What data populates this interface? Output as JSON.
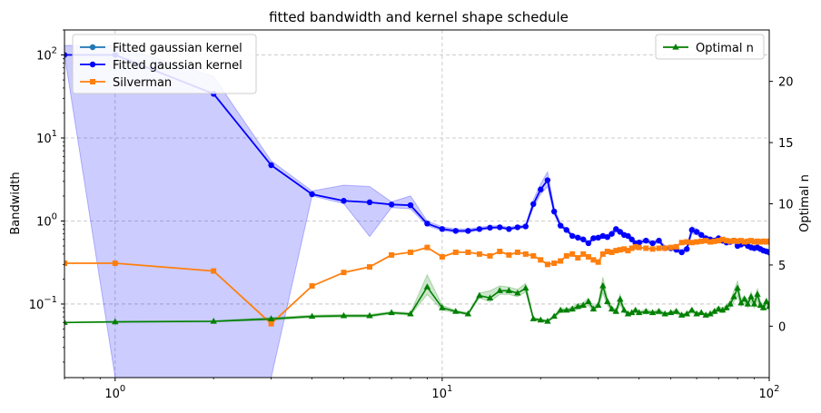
{
  "chart_data": {
    "type": "line",
    "title": "fitted bandwidth and kernel shape schedule",
    "xlabel": "",
    "ylabel": "Bandwidth",
    "y2label": "Optimal n",
    "xscale": "log",
    "yscale": "log",
    "xlim": [
      0.7,
      100
    ],
    "ylim": [
      0.013,
      200
    ],
    "y2lim": [
      -4.2,
      24.2
    ],
    "grid": true,
    "x_ticks": [
      {
        "value": 1,
        "base": "10",
        "exp": "0"
      },
      {
        "value": 10,
        "base": "10",
        "exp": "1"
      },
      {
        "value": 100,
        "base": "10",
        "exp": "2"
      }
    ],
    "y_ticks": [
      {
        "value": 0.1,
        "base": "10",
        "exp": "−1"
      },
      {
        "value": 1,
        "base": "10",
        "exp": "0"
      },
      {
        "value": 10,
        "base": "10",
        "exp": "1"
      },
      {
        "value": 100,
        "base": "10",
        "exp": "2"
      }
    ],
    "y2_ticks": [
      0,
      5,
      10,
      15,
      20
    ],
    "legend_left": {
      "placement": "upper-left",
      "entries": [
        {
          "label": "Fitted gaussian kernel",
          "color": "#1f77b4",
          "marker": "circle"
        },
        {
          "label": "Fitted gaussian kernel",
          "color": "#0000ff",
          "marker": "circle"
        },
        {
          "label": "Silverman",
          "color": "#ff7f0e",
          "marker": "square"
        }
      ]
    },
    "legend_right": {
      "placement": "upper-right",
      "entries": [
        {
          "label": "Optimal n",
          "color": "#008000",
          "marker": "triangle"
        }
      ]
    },
    "series": [
      {
        "name": "Fitted gaussian kernel",
        "axis": "left",
        "color": "#0000ff",
        "marker": "circle",
        "band_color": "#0000ff",
        "x": [
          0.7,
          1,
          2,
          3,
          4,
          5,
          6,
          7,
          8,
          9,
          10,
          11,
          12,
          13,
          14,
          15,
          16,
          17,
          18,
          19,
          20,
          21,
          22,
          23,
          24,
          25,
          26,
          27,
          28,
          29,
          30,
          31,
          32,
          33,
          34,
          35,
          36,
          37,
          38,
          39,
          40,
          42,
          44,
          46,
          48,
          50,
          52,
          54,
          56,
          58,
          60,
          62,
          64,
          66,
          68,
          70,
          72,
          74,
          76,
          78,
          80,
          82,
          84,
          86,
          88,
          90,
          92,
          94,
          96,
          98,
          100
        ],
        "y": [
          100,
          100,
          34,
          4.7,
          2.1,
          1.75,
          1.68,
          1.58,
          1.55,
          0.93,
          0.8,
          0.76,
          0.76,
          0.8,
          0.83,
          0.84,
          0.8,
          0.84,
          0.86,
          1.6,
          2.4,
          3.1,
          1.3,
          0.88,
          0.78,
          0.66,
          0.63,
          0.6,
          0.54,
          0.62,
          0.63,
          0.66,
          0.64,
          0.7,
          0.8,
          0.74,
          0.68,
          0.66,
          0.6,
          0.54,
          0.55,
          0.58,
          0.54,
          0.58,
          0.47,
          0.47,
          0.45,
          0.42,
          0.46,
          0.78,
          0.74,
          0.68,
          0.62,
          0.6,
          0.58,
          0.62,
          0.58,
          0.55,
          0.56,
          0.58,
          0.5,
          0.52,
          0.54,
          0.5,
          0.48,
          0.47,
          0.48,
          0.46,
          0.44,
          0.43,
          0.42
        ],
        "band_low": [
          100,
          0.013,
          0.013,
          0.013,
          2.0,
          1.62,
          0.65,
          1.45,
          1.4,
          0.88,
          0.76,
          0.73,
          0.73,
          0.77,
          0.8,
          0.81,
          0.78,
          0.8,
          0.83,
          1.45,
          2.1,
          2.6,
          1.2,
          0.84,
          0.75,
          0.63,
          0.6,
          0.57,
          0.52,
          0.59,
          0.6,
          0.62,
          0.61,
          0.66,
          0.74,
          0.7,
          0.65,
          0.63,
          0.57,
          0.52,
          0.52,
          0.55,
          0.51,
          0.55,
          0.45,
          0.45,
          0.43,
          0.4,
          0.43,
          0.7,
          0.68,
          0.64,
          0.59,
          0.57,
          0.55,
          0.58,
          0.55,
          0.52,
          0.53,
          0.55,
          0.47,
          0.49,
          0.51,
          0.47,
          0.46,
          0.45,
          0.45,
          0.44,
          0.42,
          0.41,
          0.38
        ],
        "band_high": [
          130,
          130,
          55,
          5.3,
          2.3,
          2.7,
          2.6,
          1.7,
          2.0,
          1.0,
          0.85,
          0.8,
          0.8,
          0.84,
          0.87,
          0.88,
          0.84,
          0.88,
          0.9,
          1.8,
          2.8,
          3.9,
          1.45,
          0.93,
          0.82,
          0.7,
          0.67,
          0.64,
          0.57,
          0.66,
          0.67,
          0.7,
          0.68,
          0.75,
          0.86,
          0.79,
          0.72,
          0.7,
          0.64,
          0.57,
          0.58,
          0.62,
          0.57,
          0.61,
          0.5,
          0.5,
          0.48,
          0.45,
          0.5,
          0.86,
          0.8,
          0.73,
          0.66,
          0.64,
          0.62,
          0.66,
          0.62,
          0.58,
          0.6,
          0.62,
          0.53,
          0.55,
          0.57,
          0.53,
          0.51,
          0.5,
          0.51,
          0.49,
          0.47,
          0.46,
          0.45
        ]
      },
      {
        "name": "Silverman",
        "axis": "left",
        "color": "#ff7f0e",
        "marker": "square",
        "x": [
          0.7,
          1,
          2,
          3,
          4,
          5,
          6,
          7,
          8,
          9,
          10,
          11,
          12,
          13,
          14,
          15,
          16,
          17,
          18,
          19,
          20,
          21,
          22,
          23,
          24,
          25,
          26,
          27,
          28,
          29,
          30,
          31,
          32,
          33,
          34,
          35,
          36,
          37,
          38,
          39,
          40,
          42,
          44,
          46,
          48,
          50,
          52,
          54,
          56,
          58,
          60,
          62,
          64,
          66,
          68,
          70,
          72,
          74,
          76,
          78,
          80,
          82,
          84,
          86,
          88,
          90,
          92,
          94,
          96,
          98,
          100
        ],
        "y": [
          0.31,
          0.31,
          0.25,
          0.058,
          0.165,
          0.24,
          0.28,
          0.39,
          0.42,
          0.48,
          0.37,
          0.42,
          0.42,
          0.4,
          0.38,
          0.43,
          0.39,
          0.42,
          0.4,
          0.38,
          0.34,
          0.3,
          0.31,
          0.33,
          0.38,
          0.4,
          0.36,
          0.4,
          0.37,
          0.34,
          0.32,
          0.4,
          0.43,
          0.42,
          0.44,
          0.45,
          0.46,
          0.44,
          0.47,
          0.49,
          0.48,
          0.47,
          0.46,
          0.47,
          0.47,
          0.48,
          0.49,
          0.55,
          0.56,
          0.55,
          0.56,
          0.57,
          0.58,
          0.56,
          0.57,
          0.58,
          0.6,
          0.58,
          0.57,
          0.58,
          0.57,
          0.58,
          0.56,
          0.57,
          0.58,
          0.56,
          0.57,
          0.56,
          0.57,
          0.56,
          0.57
        ]
      },
      {
        "name": "Optimal n",
        "axis": "right",
        "color": "#008000",
        "marker": "triangle",
        "band_color": "#008000",
        "x": [
          0.7,
          1,
          2,
          3,
          4,
          5,
          6,
          7,
          8,
          9,
          10,
          11,
          12,
          13,
          14,
          15,
          16,
          17,
          18,
          19,
          20,
          21,
          22,
          23,
          24,
          25,
          26,
          27,
          28,
          29,
          30,
          31,
          32,
          33,
          34,
          35,
          36,
          37,
          38,
          39,
          40,
          42,
          44,
          46,
          48,
          50,
          52,
          54,
          56,
          58,
          60,
          62,
          64,
          66,
          68,
          70,
          72,
          74,
          76,
          78,
          80,
          82,
          84,
          86,
          88,
          90,
          92,
          94,
          96,
          98,
          100
        ],
        "y": [
          0.3,
          0.35,
          0.4,
          0.6,
          0.8,
          0.85,
          0.85,
          1.1,
          1.0,
          3.2,
          1.5,
          1.2,
          1.0,
          2.5,
          2.3,
          2.9,
          2.9,
          2.7,
          3.1,
          0.6,
          0.5,
          0.4,
          0.8,
          1.3,
          1.3,
          1.4,
          1.6,
          1.7,
          2.0,
          1.4,
          1.7,
          3.3,
          2.0,
          1.4,
          1.2,
          2.2,
          1.3,
          1.0,
          1.1,
          1.3,
          1.1,
          1.2,
          1.1,
          1.2,
          1.0,
          1.1,
          1.2,
          0.9,
          1.0,
          1.3,
          1.0,
          1.1,
          0.9,
          1.0,
          1.2,
          1.4,
          1.3,
          1.5,
          1.8,
          2.4,
          3.1,
          1.9,
          2.2,
          1.8,
          2.4,
          1.8,
          2.6,
          1.7,
          1.5,
          2.0,
          1.6
        ],
        "band_low": [
          0.3,
          0.3,
          0.35,
          0.5,
          0.7,
          0.75,
          0.75,
          1.0,
          0.9,
          2.6,
          1.3,
          1.1,
          0.9,
          2.3,
          2.0,
          2.6,
          2.6,
          2.4,
          2.8,
          0.5,
          0.4,
          0.35,
          0.7,
          1.1,
          1.2,
          1.2,
          1.4,
          1.5,
          1.7,
          1.2,
          1.5,
          2.7,
          1.7,
          1.2,
          1.0,
          1.8,
          1.1,
          0.9,
          1.0,
          1.1,
          1.0,
          1.0,
          1.0,
          1.0,
          0.9,
          1.0,
          1.0,
          0.8,
          0.9,
          1.1,
          0.9,
          1.0,
          0.8,
          0.9,
          1.0,
          1.2,
          1.1,
          1.3,
          1.5,
          2.0,
          2.5,
          1.6,
          1.9,
          1.5,
          2.0,
          1.5,
          2.1,
          1.4,
          1.3,
          1.7,
          1.3
        ],
        "band_high": [
          0.3,
          0.4,
          0.45,
          0.7,
          0.9,
          0.95,
          0.95,
          1.2,
          1.1,
          4.2,
          1.7,
          1.3,
          1.1,
          2.7,
          2.9,
          3.3,
          3.2,
          3.0,
          3.5,
          0.7,
          0.6,
          0.5,
          0.9,
          1.5,
          1.4,
          1.6,
          1.8,
          1.9,
          2.3,
          1.6,
          1.9,
          4.0,
          2.3,
          1.6,
          1.4,
          2.6,
          1.5,
          1.1,
          1.2,
          1.5,
          1.2,
          1.4,
          1.2,
          1.4,
          1.1,
          1.2,
          1.4,
          1.0,
          1.1,
          1.5,
          1.1,
          1.2,
          1.0,
          1.1,
          1.4,
          1.6,
          1.5,
          1.7,
          2.1,
          2.9,
          3.7,
          2.2,
          2.5,
          2.1,
          2.8,
          2.1,
          3.1,
          2.0,
          1.7,
          2.3,
          1.9
        ]
      }
    ]
  }
}
